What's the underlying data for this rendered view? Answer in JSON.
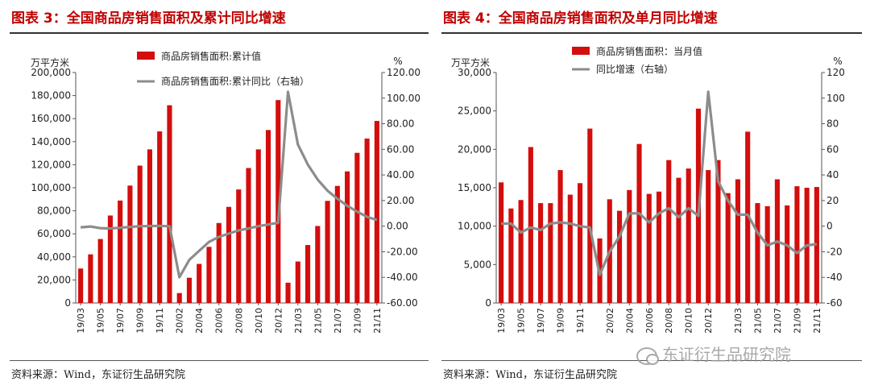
{
  "panels": [
    {
      "title": "图表 3：全国商品房销售面积及累计同比增速",
      "source": "资料来源：Wind，东证衍生品研究院"
    },
    {
      "title": "图表 4：全国商品房销售面积及单月同比增速",
      "source": "资料来源：Wind，东证衍生品研究院"
    }
  ],
  "watermark": {
    "text": "东证衍生品研究院",
    "icon": "wechat-icon"
  },
  "colors": {
    "bar": "#d40d0d",
    "line": "#8c8c8c",
    "title": "#c00000"
  },
  "chart_data": [
    {
      "type": "bar",
      "categories": [
        "19/03",
        "19/04",
        "19/05",
        "19/06",
        "19/07",
        "19/08",
        "19/09",
        "19/10",
        "19/11",
        "19/12",
        "20/02",
        "20/03",
        "20/04",
        "20/05",
        "20/06",
        "20/07",
        "20/08",
        "20/09",
        "20/10",
        "20/11",
        "20/12",
        "21/02",
        "21/03",
        "21/04",
        "21/05",
        "21/06",
        "21/07",
        "21/08",
        "21/09",
        "21/10",
        "21/11"
      ],
      "x_tick_labels": [
        "19/03",
        "19/05",
        "19/07",
        "19/09",
        "19/11",
        "20/02",
        "20/04",
        "20/06",
        "20/08",
        "20/10",
        "20/12",
        "21/03",
        "21/05",
        "21/07",
        "21/09",
        "21/11"
      ],
      "left_unit": "万平方米",
      "right_unit": "%",
      "ylim": [
        0,
        200000
      ],
      "y_ticks": [
        "0",
        "20,000",
        "40,000",
        "60,000",
        "80,000",
        "100,000",
        "120,000",
        "140,000",
        "160,000",
        "180,000",
        "200,000"
      ],
      "y2lim": [
        -60,
        120
      ],
      "y2_ticks": [
        "-60.00",
        "-40.00",
        "-20.00",
        "0.00",
        "20.00",
        "40.00",
        "60.00",
        "80.00",
        "100.00",
        "120.00"
      ],
      "series": [
        {
          "name": "商品房销售面积:累计值",
          "kind": "bar",
          "axis": "left",
          "values": [
            29900,
            42200,
            55500,
            75900,
            88900,
            101900,
            119200,
            133300,
            148900,
            171600,
            8600,
            21900,
            33900,
            48700,
            69400,
            83400,
            98500,
            117100,
            133300,
            150100,
            176100,
            17600,
            36000,
            50300,
            66800,
            88600,
            101600,
            114200,
            130300,
            142700,
            158000
          ]
        },
        {
          "name": "商品房销售面积:累计同比（右轴）",
          "kind": "line",
          "axis": "right",
          "values": [
            -0.9,
            -0.3,
            -1.6,
            -1.8,
            -1.3,
            -0.6,
            -0.1,
            0.1,
            0.2,
            -0.1,
            -39.9,
            -26.3,
            -19.3,
            -12.3,
            -8.4,
            -5.8,
            -3.3,
            -1.8,
            0.0,
            1.3,
            2.6,
            104.9,
            63.8,
            48.1,
            36.4,
            27.7,
            21.5,
            15.9,
            11.3,
            7.3,
            4.8
          ]
        }
      ]
    },
    {
      "type": "bar",
      "categories": [
        "19/03",
        "19/04",
        "19/05",
        "19/06",
        "19/07",
        "19/08",
        "19/09",
        "19/10",
        "19/11",
        "19/12",
        "20/01",
        "20/02",
        "20/03",
        "20/04",
        "20/05",
        "20/06",
        "20/07",
        "20/08",
        "20/09",
        "20/10",
        "20/11",
        "20/12",
        "21/01",
        "21/02",
        "21/03",
        "21/04",
        "21/05",
        "21/06",
        "21/07",
        "21/08",
        "21/09",
        "21/10",
        "21/11"
      ],
      "x_tick_labels": [
        "19/03",
        "19/05",
        "19/07",
        "19/09",
        "19/11",
        "20/02",
        "20/04",
        "20/06",
        "20/08",
        "20/10",
        "20/12",
        "21/03",
        "21/05",
        "21/07",
        "21/09",
        "21/11"
      ],
      "x_tick_indices": [
        0,
        2,
        4,
        6,
        8,
        11,
        13,
        15,
        17,
        19,
        21,
        24,
        26,
        28,
        30,
        32
      ],
      "left_unit": "万平方米",
      "right_unit": "%",
      "ylim": [
        0,
        30000
      ],
      "y_ticks": [
        "0",
        "5,000",
        "10,000",
        "15,000",
        "20,000",
        "25,000",
        "30,000"
      ],
      "y2lim": [
        -60,
        120
      ],
      "y2_ticks": [
        "-60",
        "-40",
        "-20",
        "0",
        "20",
        "40",
        "60",
        "80",
        "100",
        "120"
      ],
      "series": [
        {
          "name": "商品房销售面积：当月值",
          "kind": "bar",
          "axis": "left",
          "values": [
            15700,
            12300,
            13400,
            20300,
            13000,
            13000,
            17300,
            14100,
            15600,
            22700,
            8400,
            13500,
            12000,
            14700,
            20700,
            14200,
            14500,
            18600,
            16300,
            17500,
            25300,
            17300,
            18600,
            14300,
            16100,
            22300,
            13000,
            12600,
            16100,
            12700,
            15200,
            15000,
            15100
          ]
        },
        {
          "name": "同比增速（右轴）",
          "kind": "line",
          "axis": "right",
          "values": [
            2,
            2,
            -5,
            -1,
            -3,
            2,
            3,
            2,
            0,
            -1,
            -38,
            -20,
            -8,
            10,
            10,
            3,
            10,
            14,
            7,
            14,
            8,
            105,
            35,
            20,
            9,
            9,
            -5,
            -15,
            -12,
            -15,
            -21,
            -15,
            -14
          ]
        }
      ]
    }
  ]
}
